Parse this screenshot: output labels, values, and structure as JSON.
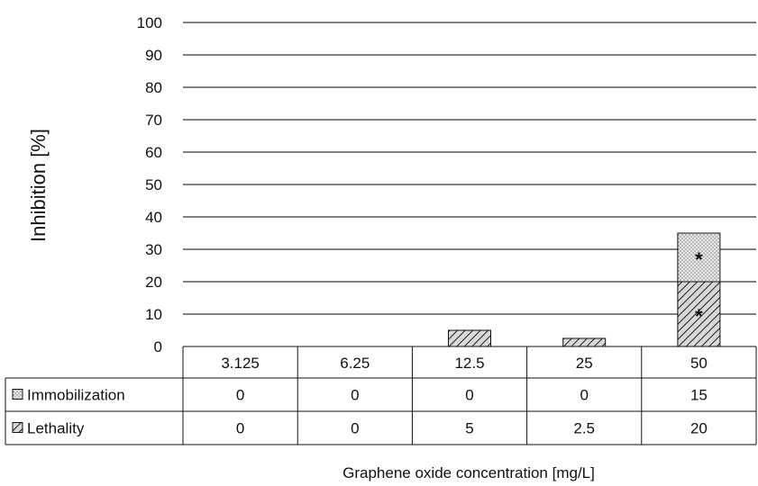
{
  "chart_data": {
    "type": "bar",
    "stacked": true,
    "categories": [
      "3.125",
      "6.25",
      "12.5",
      "25",
      "50"
    ],
    "series": [
      {
        "name": "Lethality",
        "values": [
          0,
          0,
          5,
          2.5,
          20
        ],
        "pattern": "diagonal-hatch"
      },
      {
        "name": "Immobilization",
        "values": [
          0,
          0,
          0,
          0,
          15
        ],
        "pattern": "dotted"
      }
    ],
    "ylabel": "Inhibition [%]",
    "xlabel": "Graphene oxide concentration  [mg/L]",
    "ylim": [
      0,
      100
    ],
    "yticks": [
      "0",
      "10",
      "20",
      "30",
      "40",
      "50",
      "60",
      "70",
      "80",
      "90",
      "100"
    ],
    "grid": true,
    "legend": "data-table-left",
    "annotations": [
      {
        "category": "50",
        "series": "Lethality",
        "text": "*"
      },
      {
        "category": "50",
        "series": "Immobilization",
        "text": "*"
      }
    ],
    "colors": {
      "bar_fill": "#dcdcdc",
      "hatch": "#222222",
      "gridline": "#000000"
    }
  }
}
